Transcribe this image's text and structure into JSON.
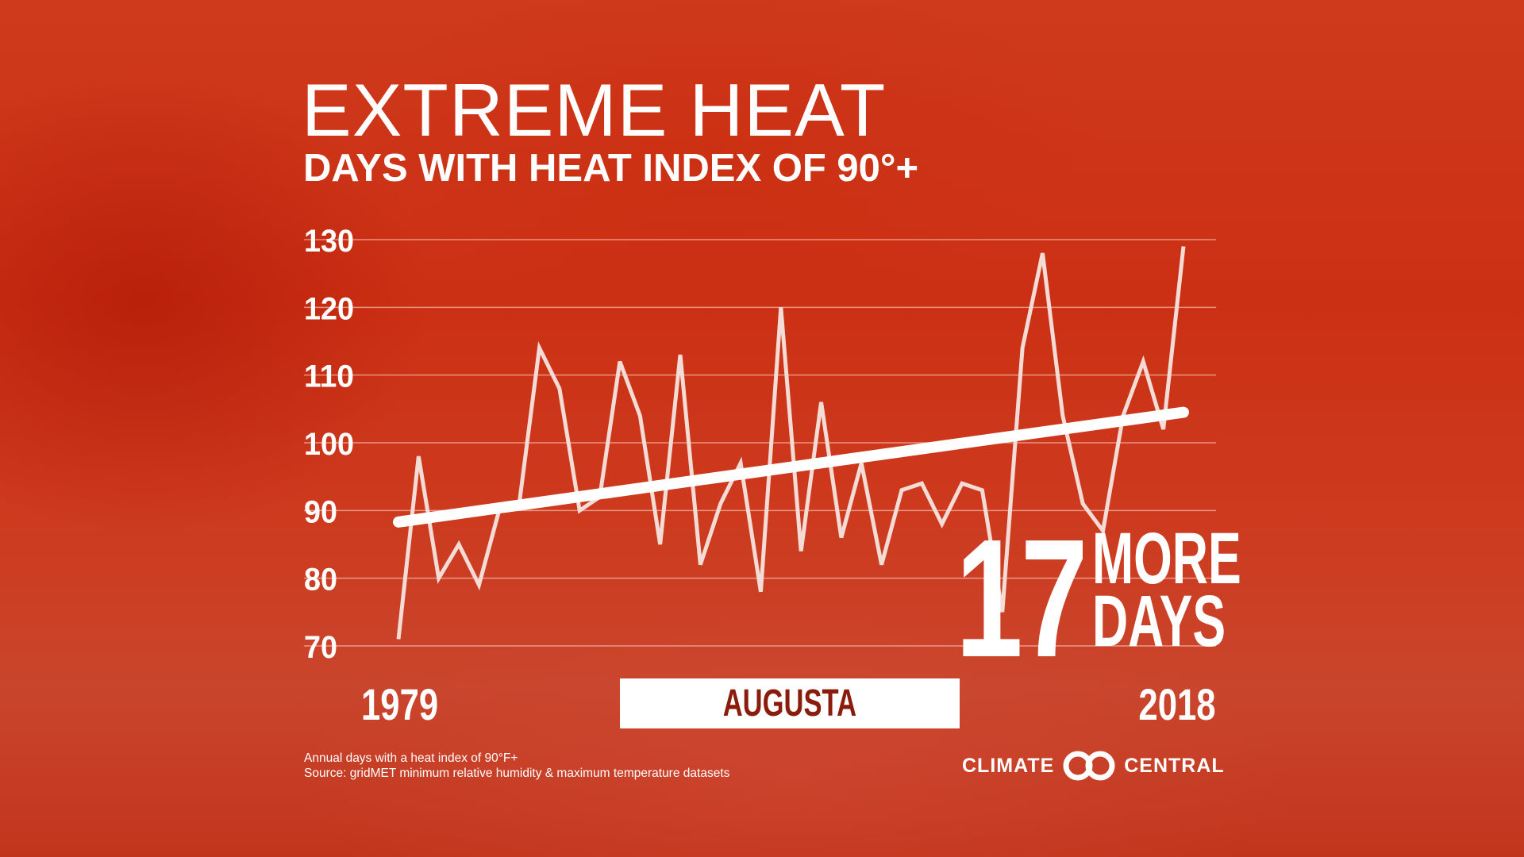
{
  "header": {
    "title": "EXTREME HEAT",
    "subtitle": "DAYS WITH HEAT INDEX OF 90°+"
  },
  "highlight": {
    "number": "17",
    "line1": "MORE",
    "line2": "DAYS"
  },
  "location": "AUGUSTA",
  "footer": {
    "note": "Annual days with a heat index of 90°F+",
    "source": "Source: gridMET minimum relative humidity & maximum temperature datasets"
  },
  "logo": {
    "left": "CLIMATE",
    "right": "CENTRAL"
  },
  "colors": {
    "background": "#cd3a1e",
    "line": "#f4dcd6",
    "trend": "#ffffff",
    "location_text": "#8a1c0c"
  },
  "chart_data": {
    "type": "line",
    "title": "DAYS WITH HEAT INDEX OF 90°+",
    "x_start_label": "1979",
    "x_end_label": "2018",
    "ylim": [
      70,
      130
    ],
    "yticks": [
      "70",
      "80",
      "90",
      "100",
      "110",
      "120",
      "130"
    ],
    "grid": true,
    "x": [
      1979,
      1980,
      1981,
      1982,
      1983,
      1984,
      1985,
      1986,
      1987,
      1988,
      1989,
      1990,
      1991,
      1992,
      1993,
      1994,
      1995,
      1996,
      1997,
      1998,
      1999,
      2000,
      2001,
      2002,
      2003,
      2004,
      2005,
      2006,
      2007,
      2008,
      2009,
      2010,
      2011,
      2012,
      2013,
      2014,
      2015,
      2016,
      2017,
      2018
    ],
    "series": [
      {
        "values": [
          71,
          98,
          80,
          85,
          79,
          90,
          91,
          114,
          108,
          90,
          92,
          112,
          104,
          85,
          113,
          82,
          91,
          97,
          78,
          120,
          84,
          106,
          86,
          97,
          82,
          93,
          94,
          88,
          94,
          93,
          75,
          114,
          128,
          104,
          91,
          87,
          104,
          112,
          102,
          129
        ]
      }
    ],
    "trend": {
      "start": 88.3,
      "end": 104.5
    }
  }
}
